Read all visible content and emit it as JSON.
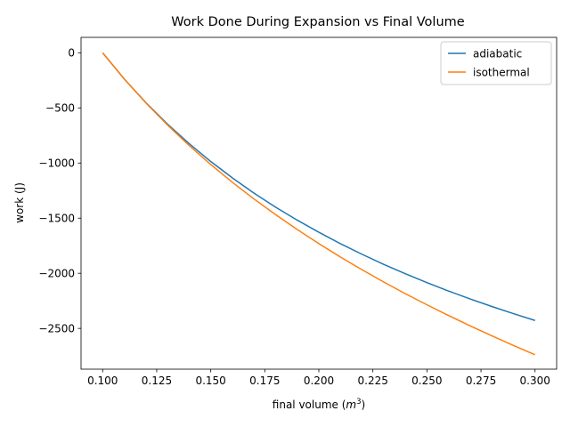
{
  "chart_data": {
    "type": "line",
    "title": "Work Done During Expansion vs Final Volume",
    "xlabel_main": "final volume (",
    "xlabel_unit": "m",
    "xlabel_exp": "3",
    "xlabel_close": ")",
    "ylabel": "work (J)",
    "xlim": [
      0.09,
      0.31
    ],
    "ylim": [
      -2870,
      140
    ],
    "x_ticks": [
      0.1,
      0.125,
      0.15,
      0.175,
      0.2,
      0.225,
      0.25,
      0.275,
      0.3
    ],
    "x_tick_labels": [
      "0.100",
      "0.125",
      "0.150",
      "0.175",
      "0.200",
      "0.225",
      "0.250",
      "0.275",
      "0.300"
    ],
    "y_ticks": [
      0,
      -500,
      -1000,
      -1500,
      -2000,
      -2500
    ],
    "y_tick_labels": [
      "0",
      "−500",
      "−1000",
      "−1500",
      "−2000",
      "−2500"
    ],
    "legend_position": "top-right",
    "grid": false,
    "x": [
      0.1,
      0.11,
      0.12,
      0.13,
      0.14,
      0.15,
      0.16,
      0.17,
      0.18,
      0.19,
      0.2,
      0.21,
      0.22,
      0.23,
      0.24,
      0.25,
      0.26,
      0.27,
      0.28,
      0.29,
      0.3
    ],
    "series": [
      {
        "name": "adiabatic",
        "color": "#1f77b4",
        "values": [
          0,
          -238,
          -452,
          -647,
          -824,
          -986,
          -1135,
          -1273,
          -1400,
          -1518,
          -1628,
          -1732,
          -1828,
          -1919,
          -2004,
          -2085,
          -2161,
          -2233,
          -2301,
          -2366,
          -2428
        ]
      },
      {
        "name": "isothermal",
        "color": "#ff7f0e",
        "values": [
          0,
          -238,
          -455,
          -655,
          -841,
          -1013,
          -1175,
          -1326,
          -1468,
          -1603,
          -1731,
          -1853,
          -1968,
          -2079,
          -2185,
          -2286,
          -2383,
          -2477,
          -2567,
          -2655,
          -2739
        ]
      }
    ]
  }
}
